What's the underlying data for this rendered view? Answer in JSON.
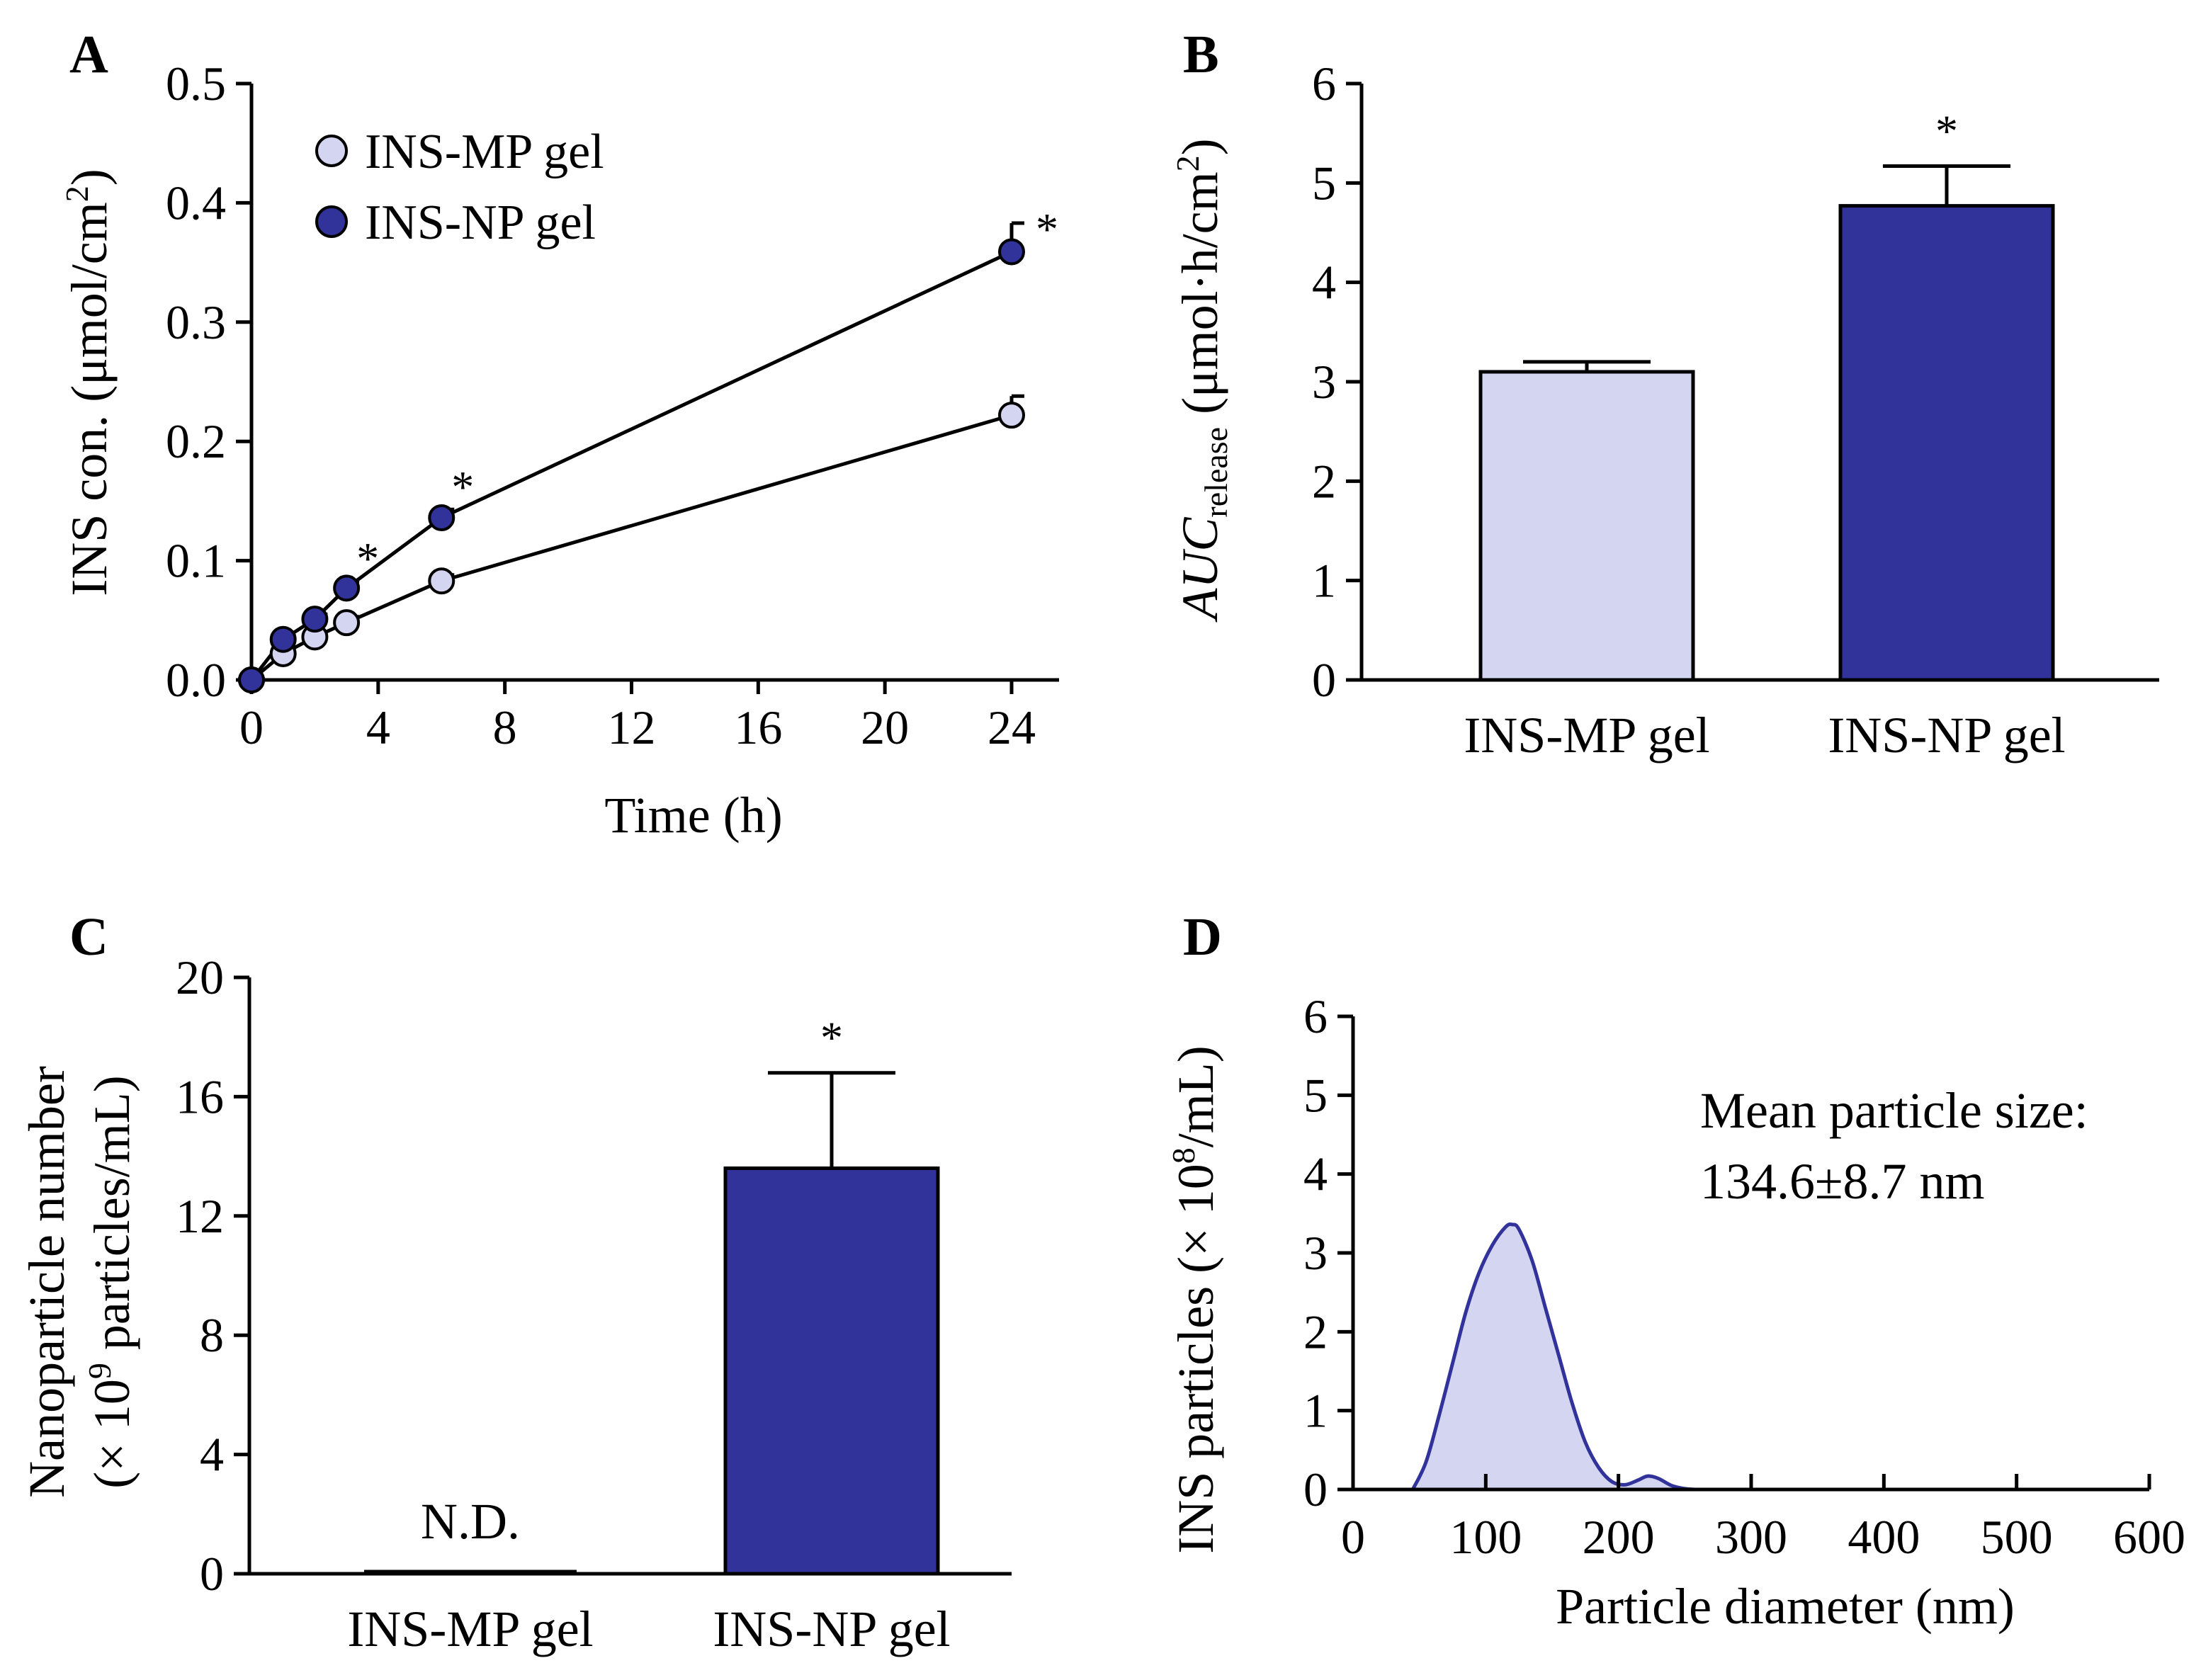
{
  "figure_title": "",
  "colors": {
    "mp": "#d4d5f0",
    "np": "#31339a",
    "line": "#000000",
    "curve": "#31339a",
    "curve_fill": "#d4d5f0"
  },
  "panel_a": {
    "letter": "A"
  },
  "panel_b": {
    "letter": "B"
  },
  "panel_c": {
    "letter": "C"
  },
  "panel_d": {
    "letter": "D"
  },
  "chart_data": [
    {
      "id": "A",
      "type": "line",
      "title": "",
      "xlabel": "Time (h)",
      "ylabel_main": "INS con. (μmol/cm",
      "ylabel_sup": "2",
      "ylabel_end": ")",
      "xlim": [
        0,
        25
      ],
      "ylim": [
        0,
        0.5
      ],
      "xticks": [
        0,
        4,
        8,
        12,
        16,
        20,
        24
      ],
      "yticks": [
        0.0,
        0.1,
        0.2,
        0.3,
        0.4,
        0.5
      ],
      "ytick_labels": [
        "0.0",
        "0.1",
        "0.2",
        "0.3",
        "0.4",
        "0.5"
      ],
      "legend_position": "top-left",
      "series": [
        {
          "name": "INS-MP gel",
          "x": [
            0,
            1,
            2,
            3,
            6,
            24
          ],
          "values": [
            0.0,
            0.022,
            0.036,
            0.048,
            0.083,
            0.222
          ],
          "errors": [
            0,
            0.003,
            0.004,
            0.005,
            0.005,
            0.016
          ],
          "significance": [
            "",
            "",
            "",
            "",
            "",
            ""
          ]
        },
        {
          "name": "INS-NP gel",
          "x": [
            0,
            1,
            2,
            3,
            6,
            24
          ],
          "values": [
            0.0,
            0.034,
            0.051,
            0.077,
            0.136,
            0.359
          ],
          "errors": [
            0,
            0.003,
            0.004,
            0.006,
            0.007,
            0.024
          ],
          "significance": [
            "",
            "",
            "",
            "*",
            "*",
            "*"
          ]
        }
      ]
    },
    {
      "id": "B",
      "type": "bar",
      "title": "",
      "xlabel": "",
      "ylabel_italic": "AUC",
      "ylabel_sub": "release",
      "ylabel_main": " (μmol·h/cm",
      "ylabel_sup": "2",
      "ylabel_end": ")",
      "ylim": [
        0,
        6
      ],
      "yticks": [
        0,
        1,
        2,
        3,
        4,
        5,
        6
      ],
      "categories": [
        "INS-MP gel",
        "INS-NP gel"
      ],
      "values": [
        3.1,
        4.77
      ],
      "errors": [
        0.1,
        0.4
      ],
      "significance": [
        "",
        "*"
      ]
    },
    {
      "id": "C",
      "type": "bar",
      "title": "",
      "xlabel": "",
      "ylabel_line1": "Nanoparticle number",
      "ylabel_line2_pre": "(× 10",
      "ylabel_line2_sup": "9",
      "ylabel_line2_post": " particles/mL)",
      "ylim": [
        0,
        20
      ],
      "yticks": [
        0,
        4,
        8,
        12,
        16,
        20
      ],
      "categories": [
        "INS-MP gel",
        "INS-NP gel"
      ],
      "values": [
        0.0,
        13.6
      ],
      "errors": [
        0.0,
        3.2
      ],
      "bar_labels": [
        "N.D.",
        ""
      ],
      "significance": [
        "",
        "*"
      ]
    },
    {
      "id": "D",
      "type": "area",
      "title": "",
      "xlabel": "Particle diameter (nm)",
      "ylabel_pre": "INS particles (× 10",
      "ylabel_sup": "8",
      "ylabel_post": "/mL)",
      "xlim": [
        0,
        600
      ],
      "ylim": [
        0,
        6
      ],
      "xticks": [
        0,
        100,
        200,
        300,
        400,
        500,
        600
      ],
      "yticks": [
        0,
        1,
        2,
        3,
        4,
        5,
        6
      ],
      "x": [
        45,
        55,
        65,
        75,
        85,
        95,
        105,
        115,
        120,
        125,
        135,
        145,
        155,
        165,
        175,
        185,
        195,
        205,
        215,
        222,
        230,
        240,
        250,
        258
      ],
      "y": [
        0.0,
        0.35,
        0.95,
        1.6,
        2.25,
        2.75,
        3.1,
        3.33,
        3.36,
        3.3,
        2.9,
        2.3,
        1.7,
        1.1,
        0.6,
        0.28,
        0.1,
        0.06,
        0.12,
        0.17,
        0.14,
        0.05,
        0.01,
        0.0
      ],
      "annotation_line1": "Mean particle size:",
      "annotation_line2": "134.6±8.7 nm"
    }
  ]
}
